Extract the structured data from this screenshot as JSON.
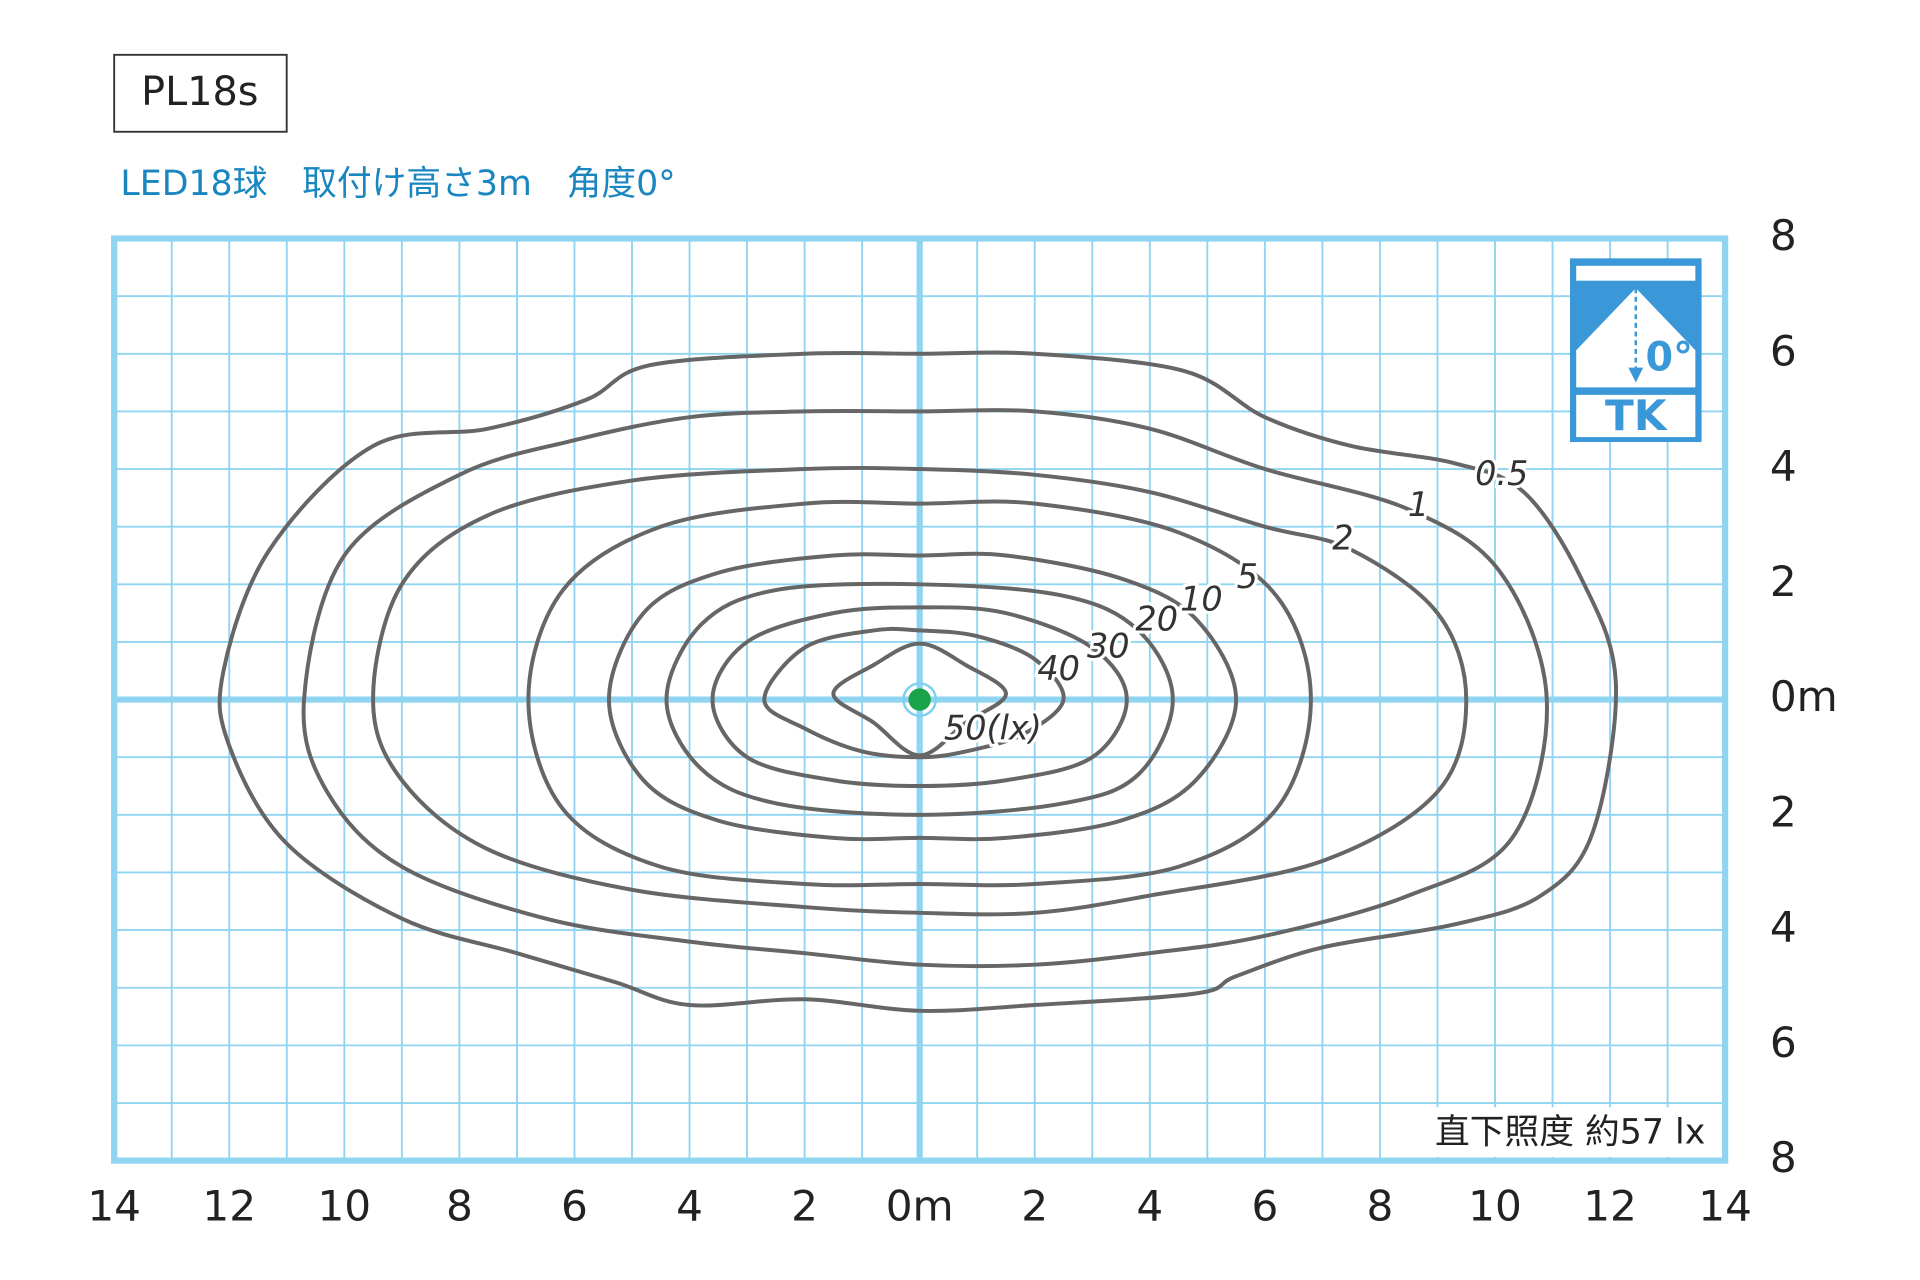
{
  "chart_data": {
    "type": "contour",
    "title": "PL18s",
    "subtitle": "LED18球　取付け高さ3m　角度0°",
    "annotation": "直下照度 約57 lx",
    "icon": {
      "angle": "0°",
      "code": "TK"
    },
    "xlim": [
      -14,
      14
    ],
    "ylim": [
      -8,
      8
    ],
    "xticks": [
      {
        "value": -14,
        "label": "14"
      },
      {
        "value": -12,
        "label": "12"
      },
      {
        "value": -10,
        "label": "10"
      },
      {
        "value": -8,
        "label": "8"
      },
      {
        "value": -6,
        "label": "6"
      },
      {
        "value": -4,
        "label": "4"
      },
      {
        "value": -2,
        "label": "2"
      },
      {
        "value": 0,
        "label": "0m"
      },
      2,
      4,
      6,
      8,
      10,
      12,
      14
    ],
    "yticks": [
      {
        "value": -8,
        "label": "8"
      },
      {
        "value": -6,
        "label": "6"
      },
      {
        "value": -4,
        "label": "4"
      },
      {
        "value": -2,
        "label": "2"
      },
      {
        "value": 0,
        "label": "0m"
      },
      2,
      4,
      6,
      8
    ],
    "grid": true,
    "grid_color": "#8fd4f0",
    "series": [
      {
        "name": "0.5",
        "color": "#666666",
        "x": [
          -12.1,
          -11.3,
          -9.5,
          -7.5,
          -5.8,
          -4.7,
          -2,
          0,
          2,
          4.6,
          6,
          7.5,
          9.3,
          10.5,
          11.5,
          12.1,
          11.7,
          10.8,
          9.3,
          7,
          5.5,
          4.8,
          2,
          0,
          -2,
          -4,
          -5.3,
          -7,
          -9,
          -11,
          -12
        ],
        "y": [
          0.5,
          2.6,
          4.4,
          4.7,
          5.2,
          5.8,
          6.0,
          6.0,
          6.0,
          5.7,
          4.9,
          4.4,
          4.1,
          3.6,
          2.1,
          0.3,
          -2.3,
          -3.4,
          -3.9,
          -4.3,
          -4.8,
          -5.1,
          -5.3,
          -5.4,
          -5.2,
          -5.3,
          -4.9,
          -4.4,
          -3.8,
          -2.5,
          -0.8
        ]
      },
      {
        "name": "1",
        "color": "#666666",
        "x": [
          -10.7,
          -10,
          -8,
          -6,
          -4,
          -2,
          0,
          2,
          4,
          6,
          8.5,
          10.1,
          10.9,
          10.3,
          8.5,
          6,
          4,
          2,
          0,
          -2,
          -4,
          -6.5,
          -9,
          -10.3
        ],
        "y": [
          0,
          2.5,
          3.9,
          4.5,
          4.9,
          5.0,
          5.0,
          5.0,
          4.7,
          4.0,
          3.3,
          2.2,
          0,
          -2.4,
          -3.4,
          -4.1,
          -4.4,
          -4.6,
          -4.6,
          -4.4,
          -4.2,
          -3.8,
          -2.9,
          -1.6
        ]
      },
      {
        "name": "2",
        "color": "#666666",
        "x": [
          -9.5,
          -9,
          -7.5,
          -5,
          -2,
          0,
          2,
          4,
          6,
          7.5,
          9,
          9.5,
          9,
          7,
          4,
          2,
          0,
          -2,
          -5,
          -7.5,
          -9
        ],
        "y": [
          0,
          2,
          3.2,
          3.8,
          4.0,
          4.0,
          3.9,
          3.6,
          3.0,
          2.6,
          1.5,
          0,
          -1.6,
          -2.8,
          -3.4,
          -3.7,
          -3.7,
          -3.6,
          -3.3,
          -2.6,
          -1.4
        ]
      },
      {
        "name": "5",
        "color": "#666666",
        "x": [
          -6.8,
          -6.2,
          -4.5,
          -2,
          0,
          2,
          4.5,
          6.2,
          6.8,
          6.2,
          4.5,
          2,
          0,
          -2,
          -4.5,
          -6.2
        ],
        "y": [
          0,
          1.9,
          3.0,
          3.4,
          3.4,
          3.4,
          2.9,
          1.8,
          0,
          -1.9,
          -2.9,
          -3.2,
          -3.2,
          -3.2,
          -2.9,
          -1.9
        ]
      },
      {
        "name": "10",
        "color": "#666666",
        "x": [
          -5.4,
          -4.8,
          -3.5,
          -1.5,
          0,
          1.5,
          3.5,
          4.8,
          5.5,
          4.8,
          3.5,
          1.5,
          0,
          -1.5,
          -3.5,
          -4.8
        ],
        "y": [
          0,
          1.5,
          2.2,
          2.5,
          2.5,
          2.5,
          2.1,
          1.4,
          0,
          -1.4,
          -2.1,
          -2.4,
          -2.4,
          -2.4,
          -2.1,
          -1.4
        ]
      },
      {
        "name": "20",
        "color": "#666666",
        "x": [
          -4.4,
          -3.8,
          -2.5,
          0,
          2.5,
          3.8,
          4.4,
          3.8,
          2.5,
          0,
          -2.5,
          -3.8
        ],
        "y": [
          0,
          1.3,
          1.9,
          2.0,
          1.8,
          1.2,
          0,
          -1.3,
          -1.8,
          -2.0,
          -1.8,
          -1.2
        ]
      },
      {
        "name": "30",
        "color": "#666666",
        "x": [
          -3.6,
          -3,
          -1.5,
          0,
          1.5,
          3,
          3.6,
          3,
          1.5,
          0,
          -1.5,
          -3
        ],
        "y": [
          0,
          1.0,
          1.5,
          1.6,
          1.5,
          0.9,
          0,
          -1.0,
          -1.4,
          -1.5,
          -1.4,
          -1.0
        ]
      },
      {
        "name": "40",
        "color": "#666666",
        "x": [
          -2.7,
          -2,
          -0.8,
          0,
          1,
          2,
          2.5,
          1.8,
          0.8,
          0,
          -1,
          -2
        ],
        "y": [
          0,
          0.9,
          1.2,
          1.2,
          1.1,
          0.7,
          0,
          -0.6,
          -0.9,
          -1.0,
          -0.9,
          -0.5
        ]
      },
      {
        "name": "50(lx)",
        "color": "#666666",
        "x": [
          -1.5,
          -0.8,
          0,
          0.8,
          1.5,
          0.8,
          0,
          -0.8
        ],
        "y": [
          0.1,
          0.6,
          0.97,
          0.6,
          0.1,
          -0.4,
          -0.97,
          -0.4
        ]
      }
    ]
  }
}
